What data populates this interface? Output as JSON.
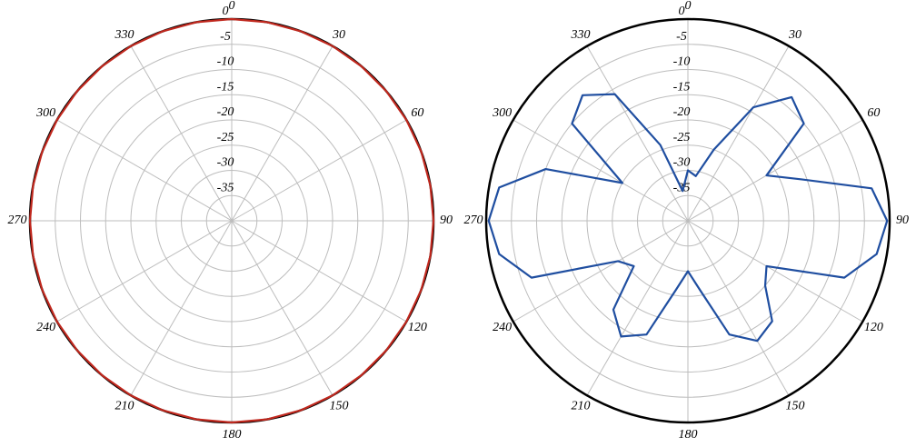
{
  "chart_data": [
    {
      "type": "polar",
      "theta": [
        0,
        10,
        20,
        30,
        40,
        50,
        60,
        70,
        80,
        90,
        100,
        110,
        120,
        130,
        140,
        150,
        160,
        170,
        180,
        190,
        200,
        210,
        220,
        230,
        240,
        250,
        260,
        270,
        280,
        290,
        300,
        310,
        320,
        330,
        340,
        350
      ],
      "values": [
        0,
        0,
        0,
        0,
        0,
        0,
        0,
        0,
        0,
        0,
        0,
        0,
        0,
        0,
        0,
        0,
        0,
        0,
        0,
        0,
        0,
        0,
        0,
        0,
        0,
        0,
        0,
        0,
        0,
        0,
        0,
        0,
        0,
        0,
        0,
        0
      ],
      "color": "#c0281e",
      "thetaticks": [
        0,
        30,
        60,
        90,
        120,
        150,
        180,
        210,
        240,
        270,
        300,
        330
      ],
      "rlim": [
        -40,
        0
      ],
      "rticks": [
        0,
        -5,
        -10,
        -15,
        -20,
        -25,
        -30,
        -35
      ]
    },
    {
      "type": "polar",
      "theta": [
        0,
        10,
        20,
        30,
        40,
        50,
        60,
        70,
        80,
        90,
        100,
        110,
        120,
        130,
        140,
        150,
        160,
        170,
        180,
        190,
        200,
        210,
        220,
        230,
        240,
        250,
        260,
        270,
        280,
        290,
        300,
        310,
        320,
        330,
        340,
        350
      ],
      "values": [
        -30,
        -31,
        -25,
        -14,
        -8,
        -10,
        -22,
        -16,
        -3,
        -0.5,
        -2,
        -7,
        -22,
        -20,
        -14,
        -12.5,
        -16,
        -26,
        -30,
        -26,
        -16,
        -13.5,
        -17,
        -26,
        -24,
        -7,
        -2,
        -0.5,
        -2,
        -10,
        -25,
        -10,
        -7.5,
        -11,
        -24,
        -34
      ],
      "color": "#1f4ea0",
      "thetaticks": [
        0,
        30,
        60,
        90,
        120,
        150,
        180,
        210,
        240,
        270,
        300,
        330
      ],
      "rlim": [
        -40,
        0
      ],
      "rticks": [
        0,
        -5,
        -10,
        -15,
        -20,
        -25,
        -30,
        -35
      ]
    }
  ]
}
